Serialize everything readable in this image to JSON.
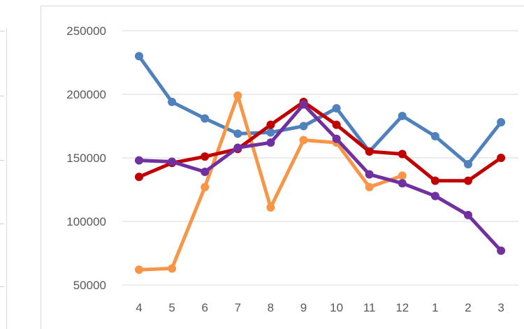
{
  "chart_data": {
    "type": "line",
    "title": "",
    "xlabel": "",
    "ylabel": "",
    "categories": [
      "4",
      "5",
      "6",
      "7",
      "8",
      "9",
      "10",
      "11",
      "12",
      "1",
      "2",
      "3"
    ],
    "ylim": [
      50000,
      250000
    ],
    "yticks": [
      "50000",
      "100000",
      "150000",
      "200000",
      "250000"
    ],
    "ytick_values": [
      50000,
      100000,
      150000,
      200000,
      250000
    ],
    "grid": true,
    "legend": "none",
    "series": [
      {
        "color": "#4f81bd",
        "values": [
          230000,
          194000,
          181000,
          169000,
          170000,
          175000,
          189000,
          155000,
          183000,
          167000,
          145000,
          178000
        ]
      },
      {
        "color": "#f79646",
        "values": [
          62000,
          63000,
          127000,
          199000,
          111000,
          164000,
          162000,
          127000,
          136000,
          null,
          null,
          null
        ]
      },
      {
        "color": "#c00000",
        "values": [
          135000,
          146000,
          151000,
          157000,
          176000,
          194000,
          176000,
          155000,
          153000,
          132000,
          132000,
          150000
        ]
      },
      {
        "color": "#7030a0",
        "values": [
          148000,
          147000,
          139000,
          158000,
          162000,
          192000,
          165000,
          137000,
          130000,
          120000,
          105000,
          77000
        ]
      }
    ]
  }
}
